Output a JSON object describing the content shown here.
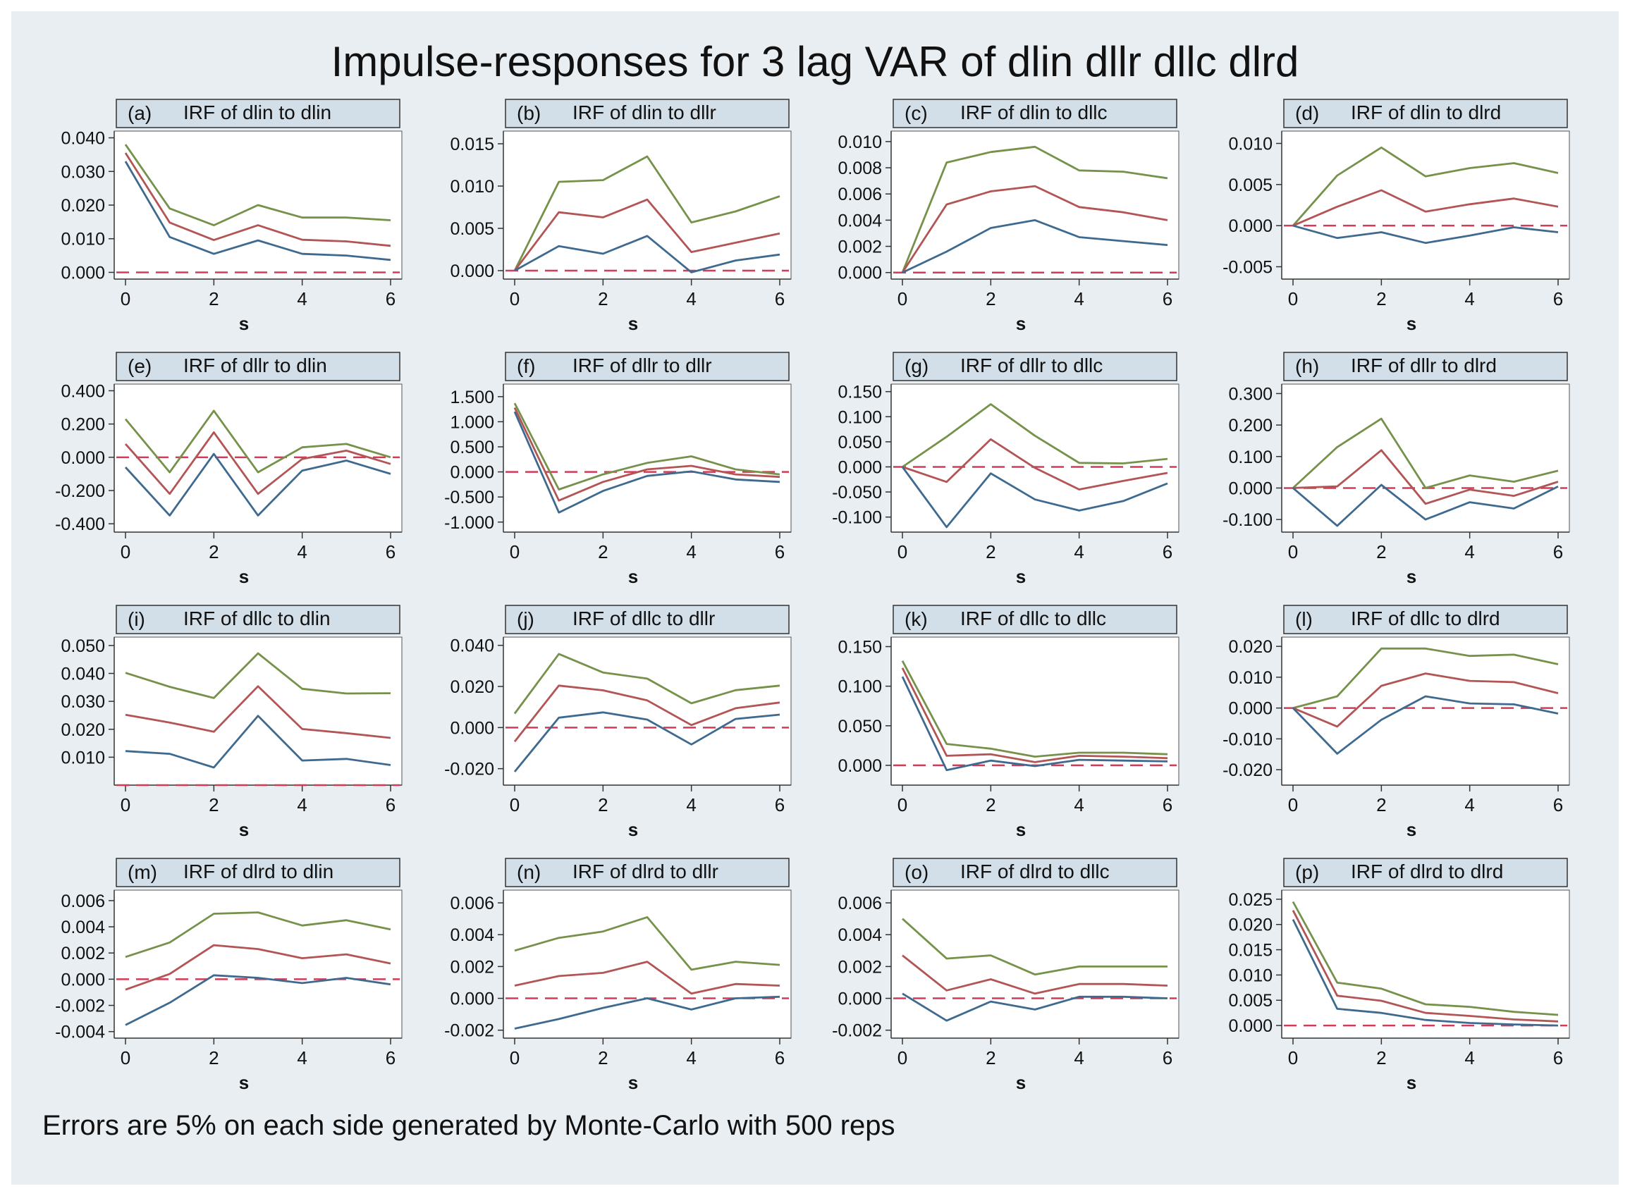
{
  "figure": {
    "title": "Impulse-responses for 3 lag VAR of dlin dllr dllc dlrd",
    "note": "Errors are 5% on each side generated by Monte-Carlo with 500 reps"
  },
  "colors": {
    "outer_bg": "#ffffff",
    "page_bg": "#e9eef2",
    "header_bg": "#d2dfe8",
    "plot_bg": "#ffffff",
    "upper": "#76924a",
    "irf": "#b35455",
    "lower": "#3f6a90",
    "zero": "#d23b58",
    "text": "#111111"
  },
  "chart_data": [
    {
      "type": "line",
      "label": "(a)",
      "title": "IRF of dlin to dlin",
      "xlabel": "s",
      "x": [
        0,
        1,
        2,
        3,
        4,
        5,
        6
      ],
      "xticks": [
        0,
        2,
        4,
        6
      ],
      "ylim": [
        -0.002,
        0.042
      ],
      "yticks": [
        0,
        0.01,
        0.02,
        0.03,
        0.04
      ],
      "ytick_labels": [
        "0.000",
        "0.010",
        "0.020",
        "0.030",
        "0.040"
      ],
      "zero": 0,
      "series": [
        {
          "values": [
            0.038,
            0.019,
            0.014,
            0.02,
            0.0163,
            0.0163,
            0.0155
          ]
        },
        {
          "values": [
            0.0355,
            0.0148,
            0.0096,
            0.014,
            0.0097,
            0.0092,
            0.0079
          ]
        },
        {
          "values": [
            0.033,
            0.0105,
            0.0055,
            0.0095,
            0.0055,
            0.005,
            0.0037
          ]
        }
      ]
    },
    {
      "type": "line",
      "label": "(b)",
      "title": "IRF of dlin to dllr",
      "xlabel": "s",
      "x": [
        0,
        1,
        2,
        3,
        4,
        5,
        6
      ],
      "xticks": [
        0,
        2,
        4,
        6
      ],
      "ylim": [
        -0.001,
        0.0165
      ],
      "yticks": [
        0,
        0.005,
        0.01,
        0.015
      ],
      "ytick_labels": [
        "0.000",
        "0.005",
        "0.010",
        "0.015"
      ],
      "zero": 0,
      "series": [
        {
          "values": [
            0,
            0.0105,
            0.0107,
            0.0135,
            0.0057,
            0.007,
            0.0088
          ]
        },
        {
          "values": [
            0,
            0.0069,
            0.0063,
            0.0084,
            0.0022,
            0.0033,
            0.0044
          ]
        },
        {
          "values": [
            0,
            0.0029,
            0.002,
            0.0041,
            -0.0002,
            0.0012,
            0.0019
          ]
        }
      ]
    },
    {
      "type": "line",
      "label": "(c)",
      "title": "IRF of dlin to dllc",
      "xlabel": "s",
      "x": [
        0,
        1,
        2,
        3,
        4,
        5,
        6
      ],
      "xticks": [
        0,
        2,
        4,
        6
      ],
      "ylim": [
        -0.0005,
        0.0108
      ],
      "yticks": [
        0,
        0.002,
        0.004,
        0.006,
        0.008,
        0.01
      ],
      "ytick_labels": [
        "0.000",
        "0.002",
        "0.004",
        "0.006",
        "0.008",
        "0.010"
      ],
      "zero": 0,
      "series": [
        {
          "values": [
            0,
            0.0084,
            0.0092,
            0.0096,
            0.0078,
            0.0077,
            0.0072
          ]
        },
        {
          "values": [
            0,
            0.0052,
            0.0062,
            0.0066,
            0.005,
            0.0046,
            0.004
          ]
        },
        {
          "values": [
            0,
            0.0016,
            0.0034,
            0.004,
            0.0027,
            0.0024,
            0.0021
          ]
        }
      ]
    },
    {
      "type": "line",
      "label": "(d)",
      "title": "IRF of dlin to dlrd",
      "xlabel": "s",
      "x": [
        0,
        1,
        2,
        3,
        4,
        5,
        6
      ],
      "xticks": [
        0,
        2,
        4,
        6
      ],
      "ylim": [
        -0.0065,
        0.0115
      ],
      "yticks": [
        -0.005,
        0,
        0.005,
        0.01
      ],
      "ytick_labels": [
        "-0.005",
        "0.000",
        "0.005",
        "0.010"
      ],
      "zero": 0,
      "series": [
        {
          "values": [
            0,
            0.0061,
            0.0095,
            0.006,
            0.007,
            0.0076,
            0.0064
          ]
        },
        {
          "values": [
            0,
            0.0023,
            0.0043,
            0.0017,
            0.0026,
            0.0033,
            0.0023
          ]
        },
        {
          "values": [
            0,
            -0.0015,
            -0.0008,
            -0.0021,
            -0.0012,
            -0.0002,
            -0.0008
          ]
        }
      ]
    },
    {
      "type": "line",
      "label": "(e)",
      "title": "IRF of dllr to dlin",
      "xlabel": "s",
      "x": [
        0,
        1,
        2,
        3,
        4,
        5,
        6
      ],
      "xticks": [
        0,
        2,
        4,
        6
      ],
      "ylim": [
        -0.45,
        0.44
      ],
      "yticks": [
        -0.4,
        -0.2,
        0,
        0.2,
        0.4
      ],
      "ytick_labels": [
        "-0.400",
        "-0.200",
        "0.000",
        "0.200",
        "0.400"
      ],
      "zero": 0,
      "series": [
        {
          "values": [
            0.23,
            -0.09,
            0.28,
            -0.09,
            0.06,
            0.08,
            0.0
          ]
        },
        {
          "values": [
            0.08,
            -0.22,
            0.15,
            -0.22,
            -0.01,
            0.04,
            -0.04
          ]
        },
        {
          "values": [
            -0.06,
            -0.35,
            0.02,
            -0.35,
            -0.08,
            -0.02,
            -0.1
          ]
        }
      ]
    },
    {
      "type": "line",
      "label": "(f)",
      "title": "IRF of dllr to dllr",
      "xlabel": "s",
      "x": [
        0,
        1,
        2,
        3,
        4,
        5,
        6
      ],
      "xticks": [
        0,
        2,
        4,
        6
      ],
      "ylim": [
        -1.2,
        1.75
      ],
      "yticks": [
        -1.0,
        -0.5,
        0,
        0.5,
        1.0,
        1.5
      ],
      "ytick_labels": [
        "-1.000",
        "-0.500",
        "0.000",
        "0.500",
        "1.000",
        "1.500"
      ],
      "zero": 0,
      "series": [
        {
          "values": [
            1.37,
            -0.35,
            -0.05,
            0.18,
            0.31,
            0.05,
            -0.05
          ]
        },
        {
          "values": [
            1.28,
            -0.57,
            -0.2,
            0.05,
            0.12,
            -0.05,
            -0.1
          ]
        },
        {
          "values": [
            1.2,
            -0.81,
            -0.38,
            -0.08,
            0.01,
            -0.15,
            -0.2
          ]
        }
      ]
    },
    {
      "type": "line",
      "label": "(g)",
      "title": "IRF of dllr to dllc",
      "xlabel": "s",
      "x": [
        0,
        1,
        2,
        3,
        4,
        5,
        6
      ],
      "xticks": [
        0,
        2,
        4,
        6
      ],
      "ylim": [
        -0.13,
        0.165
      ],
      "yticks": [
        -0.1,
        -0.05,
        0,
        0.05,
        0.1,
        0.15
      ],
      "ytick_labels": [
        "-0.100",
        "-0.050",
        "0.000",
        "0.050",
        "0.100",
        "0.150"
      ],
      "zero": 0,
      "series": [
        {
          "values": [
            0,
            0.06,
            0.125,
            0.062,
            0.008,
            0.007,
            0.016
          ]
        },
        {
          "values": [
            0,
            -0.03,
            0.055,
            -0.002,
            -0.045,
            -0.028,
            -0.012
          ]
        },
        {
          "values": [
            0,
            -0.12,
            -0.013,
            -0.065,
            -0.087,
            -0.068,
            -0.033
          ]
        }
      ]
    },
    {
      "type": "line",
      "label": "(h)",
      "title": "IRF of dllr to dlrd",
      "xlabel": "s",
      "x": [
        0,
        1,
        2,
        3,
        4,
        5,
        6
      ],
      "xticks": [
        0,
        2,
        4,
        6
      ],
      "ylim": [
        -0.14,
        0.33
      ],
      "yticks": [
        -0.1,
        0,
        0.1,
        0.2,
        0.3
      ],
      "ytick_labels": [
        "-0.100",
        "0.000",
        "0.100",
        "0.200",
        "0.300"
      ],
      "zero": 0,
      "series": [
        {
          "values": [
            0,
            0.13,
            0.22,
            0.0,
            0.04,
            0.02,
            0.055
          ]
        },
        {
          "values": [
            0,
            0.005,
            0.12,
            -0.05,
            -0.005,
            -0.025,
            0.02
          ]
        },
        {
          "values": [
            0,
            -0.12,
            0.01,
            -0.1,
            -0.045,
            -0.065,
            0.005
          ]
        }
      ]
    },
    {
      "type": "line",
      "label": "(i)",
      "title": "IRF of dllc to dlin",
      "xlabel": "s",
      "x": [
        0,
        1,
        2,
        3,
        4,
        5,
        6
      ],
      "xticks": [
        0,
        2,
        4,
        6
      ],
      "ylim": [
        0.0,
        0.053
      ],
      "yticks": [
        0.01,
        0.02,
        0.03,
        0.04,
        0.05
      ],
      "ytick_labels": [
        "0.010",
        "0.020",
        "0.030",
        "0.040",
        "0.050"
      ],
      "zero": 0,
      "series": [
        {
          "values": [
            0.0402,
            0.0352,
            0.0312,
            0.0472,
            0.0345,
            0.0328,
            0.0329
          ]
        },
        {
          "values": [
            0.0252,
            0.0224,
            0.0191,
            0.0354,
            0.0201,
            0.0186,
            0.0169
          ]
        },
        {
          "values": [
            0.0122,
            0.0112,
            0.0063,
            0.0248,
            0.0088,
            0.0094,
            0.0072
          ]
        }
      ]
    },
    {
      "type": "line",
      "label": "(j)",
      "title": "IRF of dllc to dllr",
      "xlabel": "s",
      "x": [
        0,
        1,
        2,
        3,
        4,
        5,
        6
      ],
      "xticks": [
        0,
        2,
        4,
        6
      ],
      "ylim": [
        -0.028,
        0.044
      ],
      "yticks": [
        -0.02,
        0,
        0.02,
        0.04
      ],
      "ytick_labels": [
        "-0.020",
        "0.000",
        "0.020",
        "0.040"
      ],
      "zero": 0,
      "series": [
        {
          "values": [
            0.0068,
            0.0358,
            0.0268,
            0.0238,
            0.0118,
            0.0182,
            0.0204
          ]
        },
        {
          "values": [
            -0.0068,
            0.0204,
            0.0181,
            0.0132,
            0.0012,
            0.0094,
            0.0122
          ]
        },
        {
          "values": [
            -0.0215,
            0.0048,
            0.0074,
            0.0039,
            -0.0082,
            0.0042,
            0.0063
          ]
        }
      ]
    },
    {
      "type": "line",
      "label": "(k)",
      "title": "IRF of dllc to dllc",
      "xlabel": "s",
      "x": [
        0,
        1,
        2,
        3,
        4,
        5,
        6
      ],
      "xticks": [
        0,
        2,
        4,
        6
      ],
      "ylim": [
        -0.025,
        0.162
      ],
      "yticks": [
        0,
        0.05,
        0.1,
        0.15
      ],
      "ytick_labels": [
        "0.000",
        "0.050",
        "0.100",
        "0.150"
      ],
      "zero": 0,
      "series": [
        {
          "values": [
            0.132,
            0.027,
            0.021,
            0.011,
            0.016,
            0.016,
            0.014
          ]
        },
        {
          "values": [
            0.123,
            0.012,
            0.014,
            0.004,
            0.012,
            0.011,
            0.009
          ]
        },
        {
          "values": [
            0.112,
            -0.006,
            0.006,
            -0.001,
            0.007,
            0.006,
            0.005
          ]
        }
      ]
    },
    {
      "type": "line",
      "label": "(l)",
      "title": "IRF of dllc to dlrd",
      "xlabel": "s",
      "x": [
        0,
        1,
        2,
        3,
        4,
        5,
        6
      ],
      "xticks": [
        0,
        2,
        4,
        6
      ],
      "ylim": [
        -0.025,
        0.023
      ],
      "yticks": [
        -0.02,
        -0.01,
        0,
        0.01,
        0.02
      ],
      "ytick_labels": [
        "-0.020",
        "-0.010",
        "0.000",
        "0.010",
        "0.020"
      ],
      "zero": 0,
      "series": [
        {
          "values": [
            0,
            0.0038,
            0.0193,
            0.0193,
            0.0169,
            0.0173,
            0.0142
          ]
        },
        {
          "values": [
            0,
            -0.006,
            0.0072,
            0.0112,
            0.0088,
            0.0084,
            0.0048
          ]
        },
        {
          "values": [
            0,
            -0.0148,
            -0.0038,
            0.0038,
            0.0015,
            0.0012,
            -0.0018
          ]
        }
      ]
    },
    {
      "type": "line",
      "label": "(m)",
      "title": "IRF of dlrd to dlin",
      "xlabel": "s",
      "x": [
        0,
        1,
        2,
        3,
        4,
        5,
        6
      ],
      "xticks": [
        0,
        2,
        4,
        6
      ],
      "ylim": [
        -0.0045,
        0.0068
      ],
      "yticks": [
        -0.004,
        -0.002,
        0,
        0.002,
        0.004,
        0.006
      ],
      "ytick_labels": [
        "-0.004",
        "-0.002",
        "0.000",
        "0.002",
        "0.004",
        "0.006"
      ],
      "zero": 0,
      "series": [
        {
          "values": [
            0.0017,
            0.0028,
            0.005,
            0.0051,
            0.0041,
            0.0045,
            0.0038
          ]
        },
        {
          "values": [
            -0.0008,
            0.0004,
            0.0026,
            0.0023,
            0.0016,
            0.0019,
            0.0012
          ]
        },
        {
          "values": [
            -0.0035,
            -0.0018,
            0.0003,
            0.0001,
            -0.0003,
            0.0001,
            -0.0004
          ]
        }
      ]
    },
    {
      "type": "line",
      "label": "(n)",
      "title": "IRF of dlrd to dllr",
      "xlabel": "s",
      "x": [
        0,
        1,
        2,
        3,
        4,
        5,
        6
      ],
      "xticks": [
        0,
        2,
        4,
        6
      ],
      "ylim": [
        -0.0025,
        0.0068
      ],
      "yticks": [
        -0.002,
        0,
        0.002,
        0.004,
        0.006
      ],
      "ytick_labels": [
        "-0.002",
        "0.000",
        "0.002",
        "0.004",
        "0.006"
      ],
      "zero": 0,
      "series": [
        {
          "values": [
            0.003,
            0.0038,
            0.0042,
            0.0051,
            0.0018,
            0.0023,
            0.0021
          ]
        },
        {
          "values": [
            0.0008,
            0.0014,
            0.0016,
            0.0023,
            0.0003,
            0.0009,
            0.0008
          ]
        },
        {
          "values": [
            -0.0019,
            -0.0013,
            -0.0006,
            0.0,
            -0.0007,
            0.0,
            0.0001
          ]
        }
      ]
    },
    {
      "type": "line",
      "label": "(o)",
      "title": "IRF of dlrd to dllc",
      "xlabel": "s",
      "x": [
        0,
        1,
        2,
        3,
        4,
        5,
        6
      ],
      "xticks": [
        0,
        2,
        4,
        6
      ],
      "ylim": [
        -0.0025,
        0.0068
      ],
      "yticks": [
        -0.002,
        0,
        0.002,
        0.004,
        0.006
      ],
      "ytick_labels": [
        "-0.002",
        "0.000",
        "0.002",
        "0.004",
        "0.006"
      ],
      "zero": 0,
      "series": [
        {
          "values": [
            0.005,
            0.0025,
            0.0027,
            0.0015,
            0.002,
            0.002,
            0.002
          ]
        },
        {
          "values": [
            0.0027,
            0.0005,
            0.0012,
            0.0003,
            0.0009,
            0.0009,
            0.0008
          ]
        },
        {
          "values": [
            0.0003,
            -0.0014,
            -0.0002,
            -0.0007,
            0.0001,
            0.0001,
            0.0
          ]
        }
      ]
    },
    {
      "type": "line",
      "label": "(p)",
      "title": "IRF of dlrd to dlrd",
      "xlabel": "s",
      "x": [
        0,
        1,
        2,
        3,
        4,
        5,
        6
      ],
      "xticks": [
        0,
        2,
        4,
        6
      ],
      "ylim": [
        -0.0025,
        0.0268
      ],
      "yticks": [
        0,
        0.005,
        0.01,
        0.015,
        0.02,
        0.025
      ],
      "ytick_labels": [
        "0.000",
        "0.005",
        "0.010",
        "0.015",
        "0.020",
        "0.025"
      ],
      "zero": 0,
      "series": [
        {
          "values": [
            0.0245,
            0.0085,
            0.0073,
            0.0042,
            0.0037,
            0.0027,
            0.0021
          ]
        },
        {
          "values": [
            0.0228,
            0.0059,
            0.0049,
            0.0025,
            0.0019,
            0.0012,
            0.0008
          ]
        },
        {
          "values": [
            0.021,
            0.0033,
            0.0025,
            0.0011,
            0.0005,
            0.0002,
            0.0
          ]
        }
      ]
    }
  ]
}
